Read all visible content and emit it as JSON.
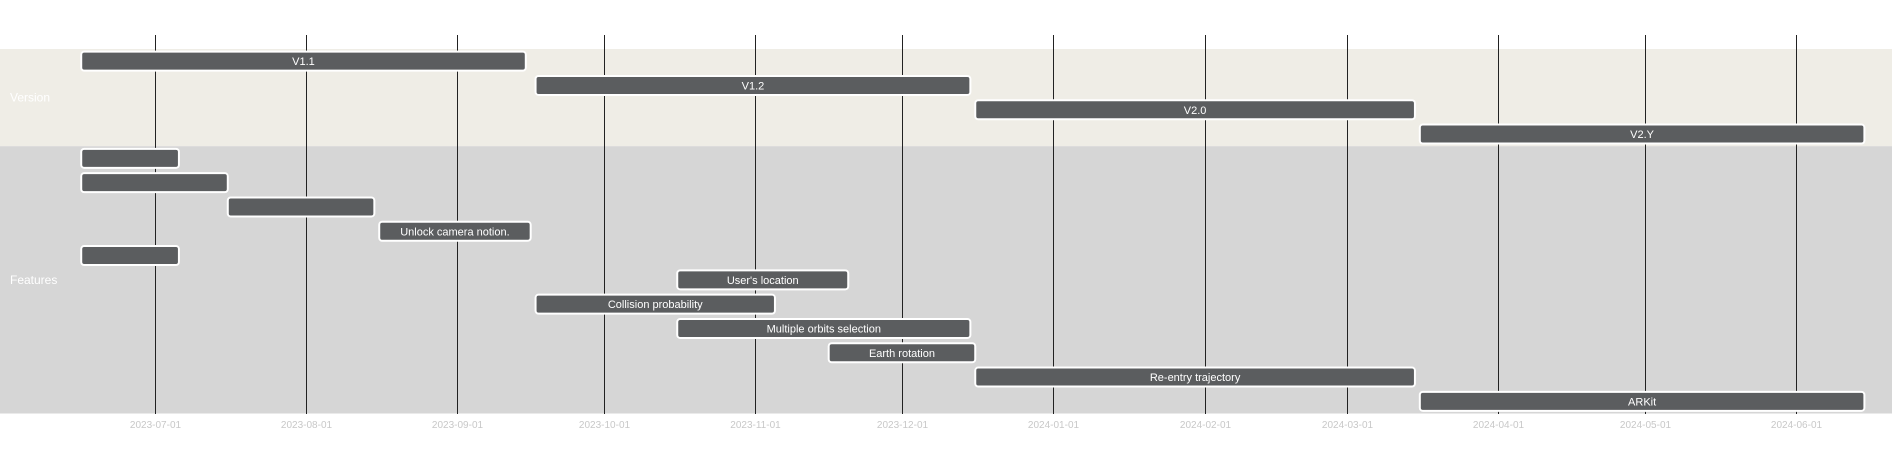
{
  "chart_data": {
    "type": "gantt",
    "title": "",
    "x_domain": [
      "2023-06-01",
      "2024-06-30"
    ],
    "ticks": [
      "2023-07-01",
      "2023-08-01",
      "2023-09-01",
      "2023-10-01",
      "2023-11-01",
      "2023-12-01",
      "2024-01-01",
      "2024-02-01",
      "2024-03-01",
      "2024-04-01",
      "2024-05-01",
      "2024-06-01"
    ],
    "grid": true,
    "colors": {
      "bar": "#5b5d5f",
      "bar_stroke": "#ffffff",
      "section_version_bg": "#efede6",
      "section_features_bg": "#d6d6d6",
      "gridline": "#222222"
    },
    "sections": [
      {
        "name": "Version",
        "tasks": [
          {
            "label": "V1.1",
            "start": "2023-06-16",
            "end": "2023-09-15"
          },
          {
            "label": "V1.2",
            "start": "2023-09-17",
            "end": "2023-12-15"
          },
          {
            "label": "V2.0",
            "start": "2023-12-16",
            "end": "2024-03-15"
          },
          {
            "label": "V2.Y",
            "start": "2024-03-16",
            "end": "2024-06-15"
          }
        ]
      },
      {
        "name": "Features",
        "tasks": [
          {
            "label": "",
            "start": "2023-06-16",
            "end": "2023-07-06"
          },
          {
            "label": "",
            "start": "2023-06-16",
            "end": "2023-07-16"
          },
          {
            "label": "",
            "start": "2023-07-16",
            "end": "2023-08-15"
          },
          {
            "label": "Unlock camera notion.",
            "start": "2023-08-16",
            "end": "2023-09-16"
          },
          {
            "label": "",
            "start": "2023-06-16",
            "end": "2023-07-06"
          },
          {
            "label": "User's location",
            "start": "2023-10-16",
            "end": "2023-11-20"
          },
          {
            "label": "Collision probability",
            "start": "2023-09-17",
            "end": "2023-11-05"
          },
          {
            "label": "Multiple orbits selection",
            "start": "2023-10-16",
            "end": "2023-12-15"
          },
          {
            "label": "Earth rotation",
            "start": "2023-11-16",
            "end": "2023-12-16"
          },
          {
            "label": "Re-entry trajectory",
            "start": "2023-12-16",
            "end": "2024-03-15"
          },
          {
            "label": "ARKit",
            "start": "2024-03-16",
            "end": "2024-06-15"
          }
        ]
      }
    ]
  }
}
